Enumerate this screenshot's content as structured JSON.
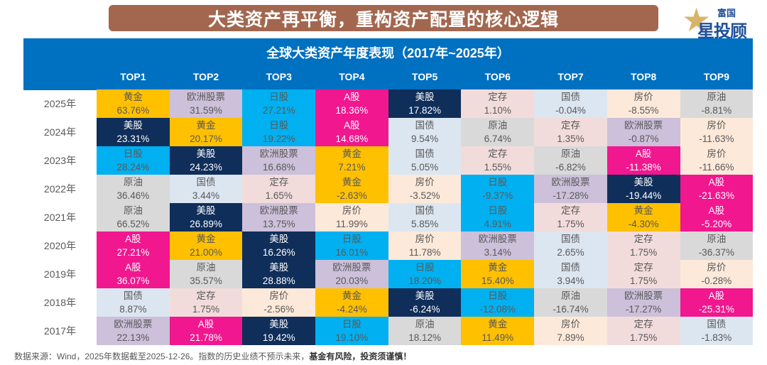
{
  "title": "大类资产再平衡，重构资产配置的核心逻辑",
  "logo": {
    "line1": "富国",
    "line2": "星投顾"
  },
  "subtitle": "全球大类资产年度表现（2017年~2025年）",
  "columns": [
    "TOP1",
    "TOP2",
    "TOP3",
    "TOP4",
    "TOP5",
    "TOP6",
    "TOP7",
    "TOP8",
    "TOP9"
  ],
  "asset_colors": {
    "黄金": {
      "bg": "#FFC000",
      "fg": "#595959"
    },
    "欧洲股票": {
      "bg": "#CCC0DA",
      "fg": "#595959"
    },
    "日股": {
      "bg": "#00B0F0",
      "fg": "#595959"
    },
    "A股": {
      "bg": "#F0178F",
      "fg": "#ffffff"
    },
    "美股": {
      "bg": "#102E5A",
      "fg": "#ffffff"
    },
    "定存": {
      "bg": "#F2DCDB",
      "fg": "#595959"
    },
    "国债": {
      "bg": "#DCE6F1",
      "fg": "#595959"
    },
    "房价": {
      "bg": "#FDE9D9",
      "fg": "#595959"
    },
    "原油": {
      "bg": "#D9D9D9",
      "fg": "#595959"
    }
  },
  "rows": [
    {
      "year": "2025年",
      "cells": [
        [
          "黄金",
          "63.76%"
        ],
        [
          "欧洲股票",
          "31.59%"
        ],
        [
          "日股",
          "27.21%"
        ],
        [
          "A股",
          "18.36%"
        ],
        [
          "美股",
          "17.82%"
        ],
        [
          "定存",
          "1.10%"
        ],
        [
          "国债",
          "-0.04%"
        ],
        [
          "房价",
          "-8.55%"
        ],
        [
          "原油",
          "-8.81%"
        ]
      ]
    },
    {
      "year": "2024年",
      "cells": [
        [
          "美股",
          "23.31%"
        ],
        [
          "黄金",
          "20.17%"
        ],
        [
          "日股",
          "19.22%"
        ],
        [
          "A股",
          "14.68%"
        ],
        [
          "国债",
          "9.54%"
        ],
        [
          "原油",
          "6.74%"
        ],
        [
          "定存",
          "1.35%"
        ],
        [
          "欧洲股票",
          "-0.87%"
        ],
        [
          "房价",
          "-11.63%"
        ]
      ]
    },
    {
      "year": "2023年",
      "cells": [
        [
          "日股",
          "28.24%"
        ],
        [
          "美股",
          "24.23%"
        ],
        [
          "欧洲股票",
          "16.68%"
        ],
        [
          "黄金",
          "7.21%"
        ],
        [
          "国债",
          "5.05%"
        ],
        [
          "定存",
          "1.55%"
        ],
        [
          "原油",
          "-6.82%"
        ],
        [
          "A股",
          "-11.38%"
        ],
        [
          "房价",
          "-11.66%"
        ]
      ]
    },
    {
      "year": "2022年",
      "cells": [
        [
          "原油",
          "36.46%"
        ],
        [
          "国债",
          "3.44%"
        ],
        [
          "定存",
          "1.65%"
        ],
        [
          "黄金",
          "-2.63%"
        ],
        [
          "房价",
          "-3.52%"
        ],
        [
          "日股",
          "-9.37%"
        ],
        [
          "欧洲股票",
          "-17.28%"
        ],
        [
          "美股",
          "-19.44%"
        ],
        [
          "A股",
          "-21.63%"
        ]
      ]
    },
    {
      "year": "2021年",
      "cells": [
        [
          "原油",
          "66.52%"
        ],
        [
          "美股",
          "26.89%"
        ],
        [
          "欧洲股票",
          "13.75%"
        ],
        [
          "房价",
          "11.99%"
        ],
        [
          "国债",
          "5.85%"
        ],
        [
          "日股",
          "4.91%"
        ],
        [
          "定存",
          "1.75%"
        ],
        [
          "黄金",
          "-4.30%"
        ],
        [
          "A股",
          "-5.20%"
        ]
      ]
    },
    {
      "year": "2020年",
      "cells": [
        [
          "A股",
          "27.21%"
        ],
        [
          "黄金",
          "21.00%"
        ],
        [
          "美股",
          "16.26%"
        ],
        [
          "日股",
          "16.01%"
        ],
        [
          "房价",
          "11.78%"
        ],
        [
          "欧洲股票",
          "3.14%"
        ],
        [
          "国债",
          "2.65%"
        ],
        [
          "定存",
          "1.75%"
        ],
        [
          "原油",
          "-36.37%"
        ]
      ]
    },
    {
      "year": "2019年",
      "cells": [
        [
          "A股",
          "36.07%"
        ],
        [
          "原油",
          "35.57%"
        ],
        [
          "美股",
          "28.88%"
        ],
        [
          "欧洲股票",
          "20.03%"
        ],
        [
          "日股",
          "18.20%"
        ],
        [
          "黄金",
          "15.40%"
        ],
        [
          "国债",
          "3.94%"
        ],
        [
          "定存",
          "1.75%"
        ],
        [
          "房价",
          "-0.28%"
        ]
      ]
    },
    {
      "year": "2018年",
      "cells": [
        [
          "国债",
          "8.87%"
        ],
        [
          "定存",
          "1.75%"
        ],
        [
          "房价",
          "-2.56%"
        ],
        [
          "黄金",
          "-4.24%"
        ],
        [
          "美股",
          "-6.24%"
        ],
        [
          "日股",
          "-12.08%"
        ],
        [
          "原油",
          "-16.74%"
        ],
        [
          "欧洲股票",
          "-17.27%"
        ],
        [
          "A股",
          "-25.31%"
        ]
      ]
    },
    {
      "year": "2017年",
      "cells": [
        [
          "欧洲股票",
          "22.13%"
        ],
        [
          "A股",
          "21.78%"
        ],
        [
          "美股",
          "19.42%"
        ],
        [
          "日股",
          "19.10%"
        ],
        [
          "原油",
          "18.12%"
        ],
        [
          "黄金",
          "11.49%"
        ],
        [
          "房价",
          "7.89%"
        ],
        [
          "定存",
          "1.75%"
        ],
        [
          "国债",
          "-1.83%"
        ]
      ]
    }
  ],
  "footer": {
    "note": "数据来源：Wind，2025年数据截至2025-12-26。指数的历史业绩不预示未来，",
    "warning": "基金有风险，投资须谨慎！"
  }
}
